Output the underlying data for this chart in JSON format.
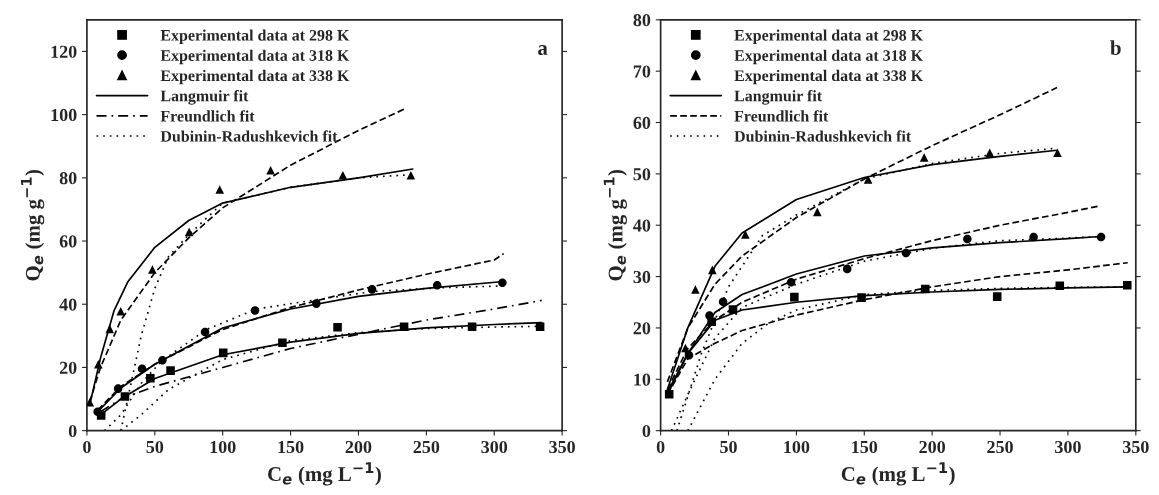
{
  "chart_data": [
    {
      "type": "line",
      "xlabel": "C$_{e}$ (mg L$^{−1}$)",
      "ylabel": "Q$_{e}$ (mg g$^{−1}$)",
      "annotations": [
        "a"
      ],
      "xlim": [
        0,
        350
      ],
      "ylim": [
        0,
        130
      ],
      "xticks": [
        0,
        50,
        100,
        150,
        200,
        250,
        300,
        350
      ],
      "yticks": [
        0,
        20,
        40,
        60,
        80,
        100,
        120
      ],
      "legend": "top left",
      "grid": false,
      "series": [
        {
          "type": "scatter",
          "name": "Experimental data at 298 K",
          "marker": "square",
          "color": "#000000",
          "x": [
            10.5,
            28,
            46.7,
            61.6,
            100.4,
            144,
            184.6,
            233.6,
            283.7,
            333.8
          ],
          "values": [
            4.8,
            10.8,
            16.6,
            19,
            24.6,
            27.8,
            32.7,
            32.9,
            32.9,
            32.9
          ]
        },
        {
          "type": "scatter",
          "name": "Experimental data at 318 K",
          "marker": "circle",
          "color": "#000000",
          "x": [
            7.9,
            23,
            40.6,
            55.6,
            87,
            123.8,
            169,
            210,
            258,
            306
          ],
          "values": [
            6,
            13.3,
            19.6,
            22.3,
            31.2,
            38,
            40.2,
            44.7,
            46,
            46.8
          ]
        },
        {
          "type": "scatter",
          "name": "Experimental data at 338 K",
          "marker": "triangle",
          "color": "#000000",
          "x": [
            2.1,
            8.4,
            16.8,
            24.9,
            48.2,
            75.3,
            97.8,
            135.3,
            188.5,
            238.6
          ],
          "values": [
            9,
            21,
            32.2,
            37.8,
            51,
            62.9,
            76.3,
            82.4,
            80.8,
            80.8
          ]
        },
        {
          "type": "line",
          "name": "Langmuir fit",
          "line_style": "solid",
          "color": "#000000",
          "x": [
            10,
            25,
            50,
            100,
            150,
            200,
            250,
            300,
            335
          ],
          "values": [
            5,
            10,
            16.5,
            24,
            28,
            30.8,
            32.5,
            33.6,
            34.2
          ]
        },
        {
          "type": "line",
          "line_style": "solid",
          "color": "#000000",
          "x": [
            8,
            25,
            50,
            100,
            150,
            200,
            250,
            307
          ],
          "values": [
            6,
            13.5,
            21,
            32.5,
            38.5,
            42.5,
            45,
            47.2
          ]
        },
        {
          "type": "line",
          "line_style": "solid",
          "color": "#000000",
          "x": [
            2,
            10,
            20,
            30,
            50,
            75,
            100,
            150,
            200,
            240
          ],
          "values": [
            8,
            23,
            38,
            47,
            58,
            66.5,
            72,
            77,
            80,
            82.8
          ]
        },
        {
          "type": "line",
          "name": "Freundlich fit",
          "line_style": "dashdot",
          "color": "#000000",
          "x": [
            10,
            25,
            50,
            100,
            150,
            200,
            250,
            300,
            335
          ],
          "values": [
            6,
            10,
            14,
            20,
            26,
            30.5,
            35,
            38.5,
            41.2
          ]
        },
        {
          "type": "line",
          "line_style": "dashed",
          "color": "#000000",
          "x": [
            8,
            25,
            50,
            100,
            150,
            200,
            250,
            300,
            307
          ],
          "values": [
            6.5,
            14,
            21,
            32,
            39,
            44.5,
            49.5,
            54,
            56
          ]
        },
        {
          "type": "line",
          "line_style": "dashed",
          "color": "#000000",
          "x": [
            2,
            10,
            25,
            50,
            75,
            100,
            150,
            200,
            235
          ],
          "values": [
            9,
            20,
            35,
            50,
            61,
            70.5,
            84,
            95,
            102
          ]
        },
        {
          "type": "line",
          "name": "Dubinin-Radushkevich fit",
          "line_style": "dotted",
          "color": "#000000",
          "x": [
            25,
            40,
            60,
            100,
            150,
            200,
            250,
            300,
            334
          ],
          "values": [
            0,
            5,
            13,
            22.5,
            28.5,
            31,
            32.3,
            32.8,
            33
          ]
        },
        {
          "type": "line",
          "line_style": "dotted",
          "color": "#000000",
          "x": [
            13,
            25,
            40,
            55,
            88,
            125,
            170,
            210,
            260,
            307
          ],
          "values": [
            0,
            5,
            15,
            22,
            32,
            38.5,
            41.5,
            44,
            45.2,
            45.8
          ]
        },
        {
          "type": "line",
          "line_style": "dotted",
          "color": "#000000",
          "x": [
            25,
            30,
            40,
            50,
            60,
            75,
            100,
            150,
            200,
            240
          ],
          "values": [
            0,
            10,
            30,
            45,
            55,
            62,
            72,
            77,
            80,
            81
          ]
        }
      ]
    },
    {
      "type": "line",
      "xlabel": "C$_{e}$ (mg L$^{−1}$)",
      "ylabel": "Q$_{e}$ (mg g$^{−1}$)",
      "annotations": [
        "b"
      ],
      "xlim": [
        0,
        350
      ],
      "ylim": [
        0,
        80
      ],
      "xticks": [
        0,
        50,
        100,
        150,
        200,
        250,
        300,
        350
      ],
      "yticks": [
        0,
        10,
        20,
        30,
        40,
        50,
        60,
        70,
        80
      ],
      "legend": "top left",
      "grid": false,
      "series": [
        {
          "type": "scatter",
          "name": "Experimental data at 298 K",
          "marker": "square",
          "color": "#000000",
          "x": [
            6.3,
            37.6,
            53.3,
            98.5,
            148,
            194.9,
            247.9,
            294,
            343.7
          ],
          "values": [
            7.1,
            21.2,
            23.6,
            26,
            25.9,
            27.6,
            26.1,
            28.2,
            28.3
          ]
        },
        {
          "type": "scatter",
          "name": "Experimental data at 318 K",
          "marker": "circle",
          "color": "#000000",
          "x": [
            20.9,
            36,
            46,
            96.1,
            137.4,
            180.7,
            225.9,
            274.7,
            324.4
          ],
          "values": [
            14.7,
            22.4,
            25.1,
            28.9,
            31.5,
            34.6,
            37.3,
            37.7,
            37.7
          ]
        },
        {
          "type": "scatter",
          "name": "Experimental data at 338 K",
          "marker": "triangle",
          "color": "#000000",
          "x": [
            18.3,
            25.6,
            38.1,
            62.4,
            115.4,
            152.8,
            194.1,
            242.4,
            292.3
          ],
          "values": [
            16.1,
            27.5,
            31.3,
            38.2,
            42.6,
            48.9,
            53.2,
            54.1,
            54.1
          ]
        },
        {
          "type": "line",
          "name": "Langmuir fit",
          "line_style": "solid",
          "color": "#000000",
          "x": [
            5,
            20,
            40,
            60,
            100,
            150,
            200,
            250,
            300,
            344
          ],
          "values": [
            7,
            15,
            21.5,
            23.5,
            25,
            26.3,
            27,
            27.5,
            27.8,
            28
          ]
        },
        {
          "type": "line",
          "line_style": "solid",
          "color": "#000000",
          "x": [
            5,
            20,
            40,
            60,
            100,
            150,
            200,
            250,
            300,
            324
          ],
          "values": [
            7.5,
            15,
            23,
            26.5,
            30.5,
            34,
            35.6,
            36.6,
            37.4,
            37.8
          ]
        },
        {
          "type": "line",
          "line_style": "solid",
          "color": "#000000",
          "x": [
            5,
            20,
            40,
            60,
            100,
            150,
            200,
            250,
            292
          ],
          "values": [
            8,
            20,
            32,
            38.5,
            45,
            49.3,
            51.8,
            53.4,
            54.6
          ]
        },
        {
          "type": "line",
          "name": "Freundlich fit",
          "line_style": "dashed",
          "color": "#000000",
          "x": [
            5,
            20,
            40,
            60,
            100,
            150,
            200,
            250,
            300,
            344
          ],
          "values": [
            7,
            14,
            17,
            19.5,
            22.5,
            25.5,
            28,
            30,
            31.3,
            32.7
          ]
        },
        {
          "type": "line",
          "line_style": "dashed",
          "color": "#000000",
          "x": [
            5,
            20,
            40,
            60,
            100,
            150,
            200,
            250,
            300,
            324
          ],
          "values": [
            8,
            16,
            21.5,
            25,
            29.5,
            33.5,
            37,
            40,
            42.5,
            43.8
          ]
        },
        {
          "type": "line",
          "line_style": "dashed",
          "color": "#000000",
          "x": [
            5,
            20,
            40,
            60,
            100,
            150,
            200,
            250,
            292
          ],
          "values": [
            9.5,
            20,
            28.5,
            34,
            41.5,
            49,
            55.5,
            61.5,
            66.8
          ]
        },
        {
          "type": "line",
          "name": "Dubinin-Radushkevich fit",
          "line_style": "dotted",
          "color": "#000000",
          "x": [
            20,
            40,
            60,
            80,
            100,
            150,
            200,
            250,
            300,
            344
          ],
          "values": [
            0,
            10,
            17,
            21,
            23.5,
            26.5,
            27.3,
            27.7,
            27.9,
            28
          ]
        },
        {
          "type": "line",
          "line_style": "dotted",
          "color": "#000000",
          "x": [
            8,
            20,
            40,
            60,
            100,
            150,
            200,
            250,
            300,
            324
          ],
          "values": [
            0,
            7,
            18,
            24,
            28.5,
            33,
            35.5,
            37,
            37.5,
            37.8
          ]
        },
        {
          "type": "line",
          "line_style": "dotted",
          "color": "#000000",
          "x": [
            12,
            30,
            50,
            75,
            100,
            150,
            200,
            250,
            292
          ],
          "values": [
            0,
            15,
            28,
            38,
            42,
            49,
            52,
            54,
            55
          ]
        }
      ]
    }
  ]
}
